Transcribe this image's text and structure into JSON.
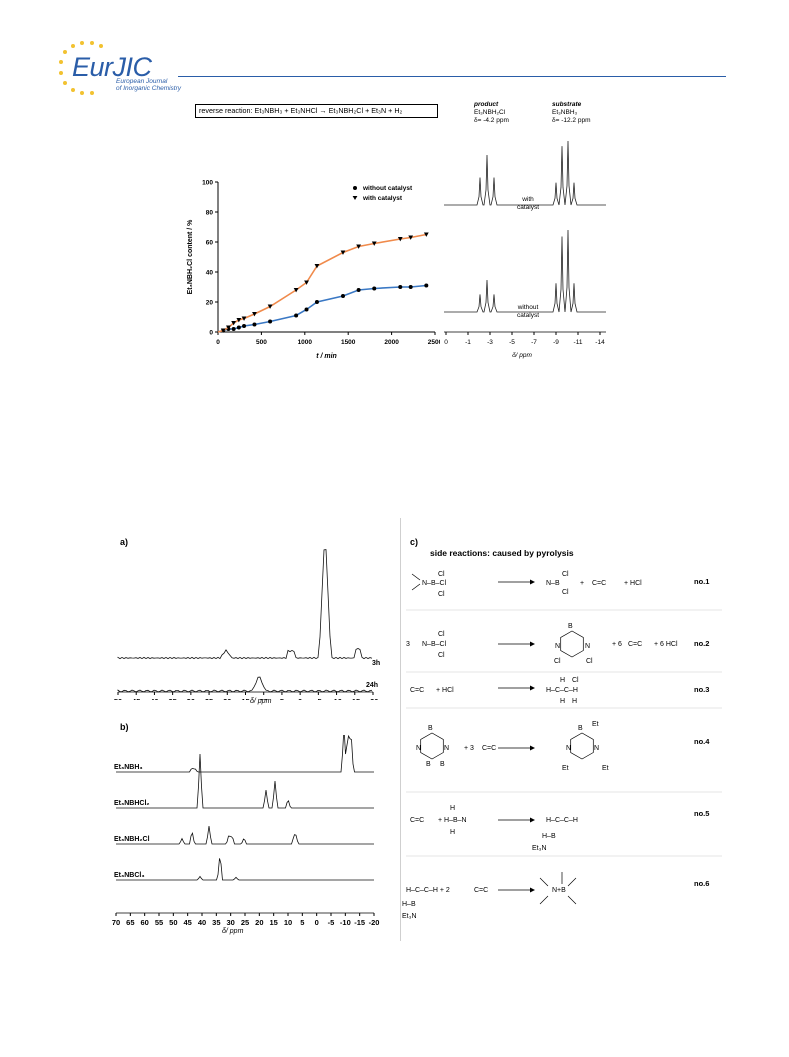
{
  "header": {
    "logo_text": "EurJIC",
    "logo_subtitle": [
      "European Journal",
      "of Inorganic Chemistry"
    ],
    "brand_color": "#2a5da8",
    "star_color": "#f2c230"
  },
  "figure_top": {
    "reaction_box": "reverse reaction: Et₃NBH₃ + Et₃NHCl → Et₃NBH₂Cl + Et₃N + H₂",
    "chart_data": {
      "type": "scatter",
      "title": "",
      "xlabel": "t / min",
      "ylabel": "Et₃NBH₂Cl content / %",
      "xlim": [
        0,
        2500
      ],
      "ylim": [
        0,
        100
      ],
      "xticks": [
        "0",
        "500",
        "1000",
        "1500",
        "2000",
        "2500"
      ],
      "yticks": [
        "0",
        "20",
        "40",
        "60",
        "80",
        "100"
      ],
      "grid": false,
      "legend_position": "top-right",
      "series": [
        {
          "name": "without catalyst",
          "marker": "circle",
          "fit_color": "#3a78c4",
          "x": [
            60,
            120,
            180,
            240,
            300,
            420,
            600,
            900,
            1020,
            1140,
            1440,
            1620,
            1800,
            2100,
            2220,
            2400
          ],
          "y": [
            1,
            2,
            2,
            3,
            4,
            5,
            7,
            11,
            15,
            20,
            24,
            28,
            29,
            30,
            30,
            31
          ]
        },
        {
          "name": "with catalyst",
          "marker": "triangle-down",
          "fit_color": "#f08a4b",
          "x": [
            60,
            120,
            180,
            240,
            300,
            420,
            600,
            900,
            1020,
            1140,
            1440,
            1620,
            1800,
            2100,
            2220,
            2400
          ],
          "y": [
            1,
            3,
            6,
            8,
            9,
            12,
            17,
            28,
            33,
            44,
            53,
            57,
            59,
            62,
            63,
            65
          ]
        }
      ]
    },
    "nmr": {
      "product_label": [
        "product",
        "Et₃NBH₂Cl",
        "δ= -4.2 ppm"
      ],
      "substrate_label": [
        "substrate",
        "Et₃NBH₃",
        "δ= -12.2 ppm"
      ],
      "trace_top_label": [
        "with",
        "catalyst"
      ],
      "trace_bottom_label": [
        "without",
        "catalyst"
      ],
      "xticks": [
        "0",
        "-1",
        "-3",
        "-5",
        "-7",
        "-9",
        "-11",
        "-14"
      ],
      "xlabel": "δ/ ppm"
    }
  },
  "figure_bottom": {
    "panel_a": {
      "label": "a)",
      "trace_labels": [
        "3h",
        "24h"
      ],
      "xticks": [
        "50",
        "45",
        "40",
        "35",
        "30",
        "25",
        "20",
        "15",
        "10",
        "5",
        "0",
        "-5",
        "-10",
        "-15",
        "-20"
      ],
      "xlabel": "δ/ ppm"
    },
    "panel_b": {
      "label": "b)",
      "trace_labels": [
        "Et₃NBH₃",
        "Et₃NBHCl₂",
        "Et₃NBH₂Cl",
        "Et₃NBCl₃"
      ],
      "xticks": [
        "70",
        "65",
        "60",
        "55",
        "50",
        "45",
        "40",
        "35",
        "30",
        "25",
        "20",
        "15",
        "10",
        "5",
        "0",
        "-5",
        "-10",
        "-15",
        "-20"
      ],
      "xlabel": "δ/ ppm"
    },
    "panel_c": {
      "label": "c)",
      "title": "side reactions: caused by pyrolysis",
      "reactions": [
        {
          "no": "no.1"
        },
        {
          "no": "no.2"
        },
        {
          "no": "no.3"
        },
        {
          "no": "no.4"
        },
        {
          "no": "no.5"
        },
        {
          "no": "no.6"
        }
      ]
    }
  }
}
